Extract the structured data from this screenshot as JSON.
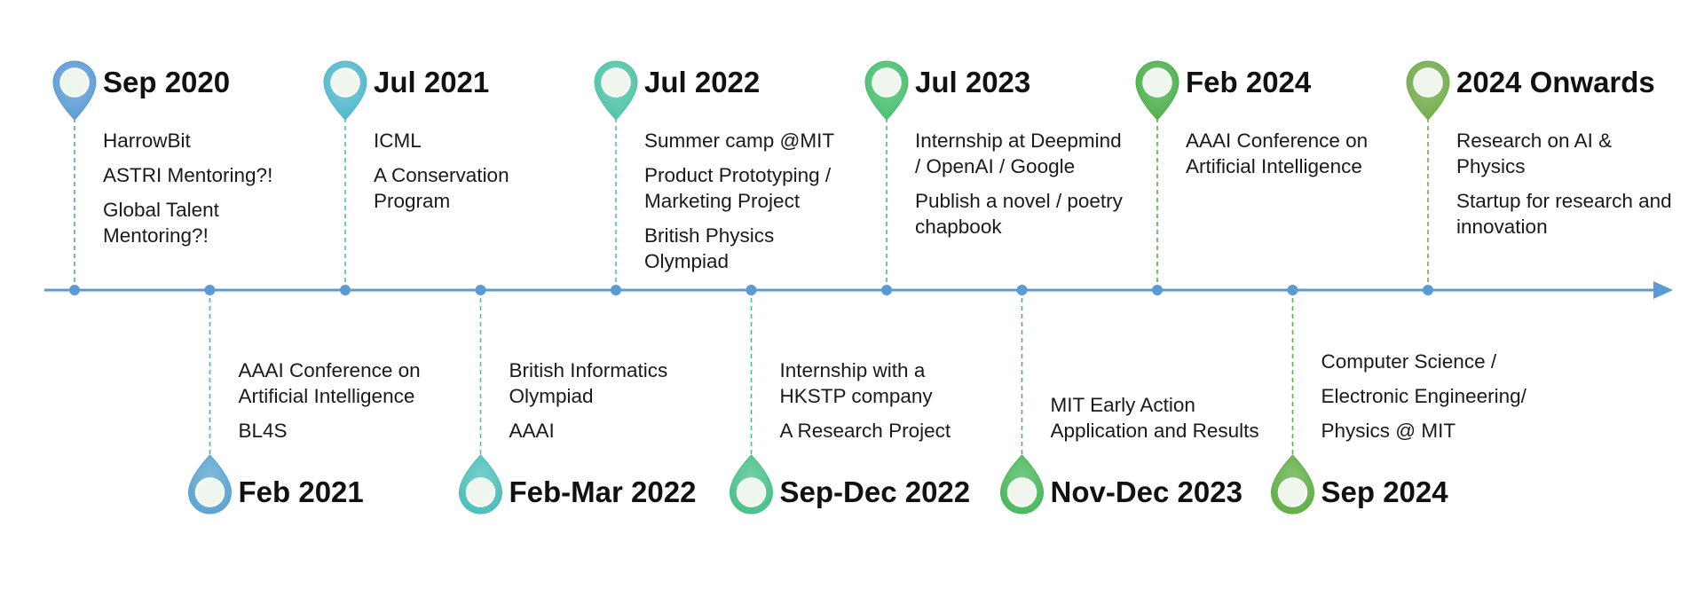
{
  "timeline": {
    "milestones": [
      {
        "date": "Sep 2020",
        "color": "#5b9bd5",
        "events": [
          "HarrowBit",
          "ASTRI Mentoring?!",
          "Global Talent Mentoring?!"
        ]
      },
      {
        "date": "Feb 2021",
        "color": "#5ba3d0",
        "events": [
          "AAAI Conference on Artificial Intelligence",
          "BL4S"
        ]
      },
      {
        "date": "Jul 2021",
        "color": "#4fb8cc",
        "events": [
          "ICML",
          "A Conservation Program"
        ]
      },
      {
        "date": "Feb-Mar 2022",
        "color": "#4bbfb8",
        "events": [
          "British Informatics Olympiad",
          "AAAI"
        ]
      },
      {
        "date": "Jul 2022",
        "color": "#4ec3a6",
        "events": [
          "Summer camp @MIT",
          "Product Prototyping / Marketing Project",
          "British Physics Olympiad"
        ]
      },
      {
        "date": "Sep-Dec 2022",
        "color": "#48c088",
        "events": [
          "Internship with a HKSTP company",
          "A Research Project"
        ]
      },
      {
        "date": "Jul 2023",
        "color": "#47bf6f",
        "events": [
          "Internship at Deepmind / OpenAI / Google",
          "Publish a novel / poetry chapbook"
        ]
      },
      {
        "date": "Nov-Dec 2023",
        "color": "#49b85a",
        "events": [
          "MIT Early Action Application and Results"
        ]
      },
      {
        "date": "Feb 2024",
        "color": "#4cb04a",
        "events": [
          "AAAI Conference on Artificial Intelligence"
        ]
      },
      {
        "date": "Sep 2024",
        "color": "#5fae45",
        "events": [
          "Computer Science /",
          "Electronic Engineering/",
          "Physics @ MIT"
        ]
      },
      {
        "date": "2024 Onwards",
        "color": "#72ac4a",
        "events": [
          "Research on AI & Physics",
          "Startup for research and innovation"
        ]
      }
    ],
    "axis_color": "#5b9bd5"
  }
}
